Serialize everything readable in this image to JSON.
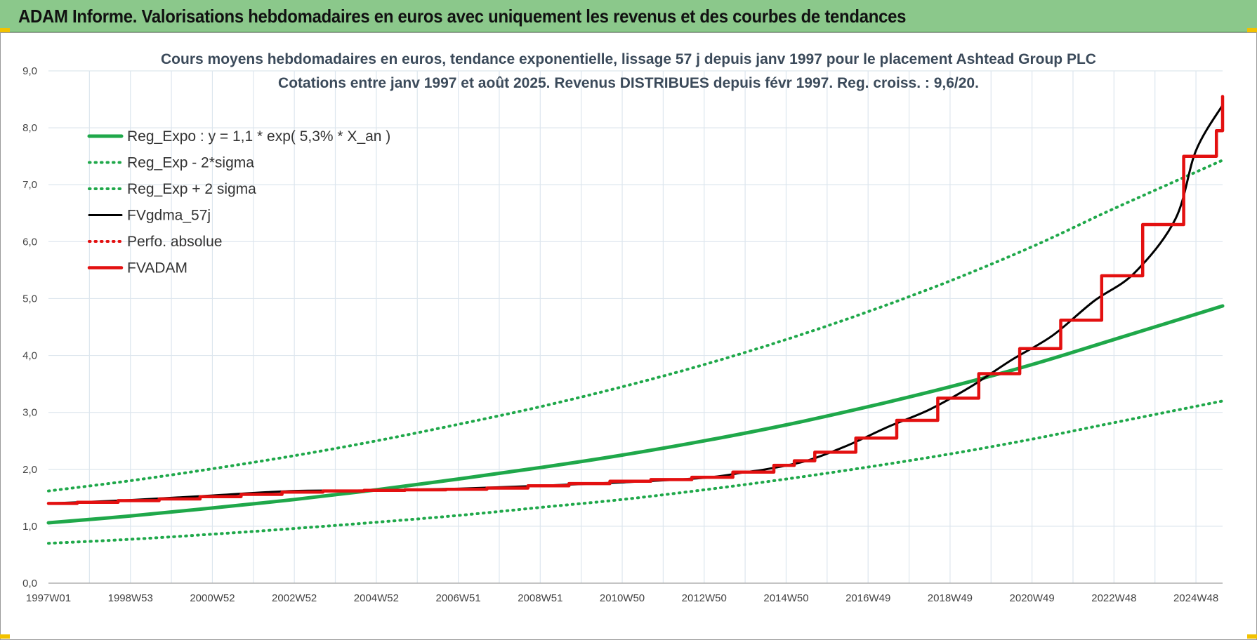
{
  "header": {
    "title": "ADAM Informe. Valorisations hebdomadaires en euros avec uniquement les revenus et des courbes de tendances"
  },
  "colors": {
    "header_bg": "#8bc88b",
    "green": "#1fa84a",
    "black": "#000000",
    "red": "#e31010",
    "grid": "#dde6ee"
  },
  "chart_data": {
    "type": "line",
    "title_lines": [
      "Cours moyens hebdomadaires en euros, tendance exponentielle, lissage 57 j depuis janv 1997 pour le placement Ashtead Group PLC",
      "Cotations entre janv 1997 et août 2025.  Revenus DISTRIBUES depuis févr 1997.  Reg. croiss. : 9,6/20."
    ],
    "xlim": [
      1997.0,
      2025.65
    ],
    "ylim": [
      0,
      9
    ],
    "grid": true,
    "legend_position": "top-left",
    "y_ticks": [
      "0,0",
      "1,0",
      "2,0",
      "3,0",
      "4,0",
      "5,0",
      "6,0",
      "7,0",
      "8,0",
      "9,0"
    ],
    "x_ticks": [
      {
        "label": "1997W01",
        "x": 1997.0
      },
      {
        "label": "1998W53",
        "x": 1999.0
      },
      {
        "label": "2000W52",
        "x": 2001.0
      },
      {
        "label": "2002W52",
        "x": 2003.0
      },
      {
        "label": "2004W52",
        "x": 2005.0
      },
      {
        "label": "2006W51",
        "x": 2007.0
      },
      {
        "label": "2008W51",
        "x": 2009.0
      },
      {
        "label": "2010W50",
        "x": 2011.0
      },
      {
        "label": "2012W50",
        "x": 2013.0
      },
      {
        "label": "2014W50",
        "x": 2015.0
      },
      {
        "label": "2016W49",
        "x": 2017.0
      },
      {
        "label": "2018W49",
        "x": 2019.0
      },
      {
        "label": "2020W49",
        "x": 2021.0
      },
      {
        "label": "2022W48",
        "x": 2023.0
      },
      {
        "label": "2024W48",
        "x": 2025.0
      }
    ],
    "series": [
      {
        "name": "Reg_Expo : y = 1,1 * exp( 5,3% *  X_an )",
        "style": "solid-thick",
        "color": "#1fa84a",
        "x": [
          1997,
          1999,
          2001,
          2003,
          2005,
          2007,
          2009,
          2011,
          2013,
          2015,
          2017,
          2019,
          2021,
          2023,
          2025.65
        ],
        "y": [
          1.06,
          1.18,
          1.32,
          1.47,
          1.64,
          1.83,
          2.03,
          2.25,
          2.5,
          2.78,
          3.1,
          3.45,
          3.84,
          4.28,
          4.87
        ]
      },
      {
        "name": "Reg_Exp - 2*sigma",
        "style": "dotted",
        "color": "#1fa84a",
        "x": [
          1997,
          1999,
          2001,
          2003,
          2005,
          2007,
          2009,
          2011,
          2013,
          2015,
          2017,
          2019,
          2021,
          2023,
          2025.65
        ],
        "y": [
          0.7,
          0.77,
          0.86,
          0.96,
          1.07,
          1.19,
          1.33,
          1.47,
          1.64,
          1.83,
          2.04,
          2.27,
          2.53,
          2.82,
          3.2
        ]
      },
      {
        "name": "Reg_Exp + 2 sigma",
        "style": "dotted",
        "color": "#1fa84a",
        "x": [
          1997,
          1999,
          2001,
          2003,
          2005,
          2007,
          2009,
          2011,
          2013,
          2015,
          2017,
          2019,
          2021,
          2023,
          2025.65
        ],
        "y": [
          1.62,
          1.8,
          2.01,
          2.24,
          2.5,
          2.79,
          3.1,
          3.45,
          3.84,
          4.28,
          4.77,
          5.31,
          5.91,
          6.58,
          7.43
        ]
      },
      {
        "name": "FVgdma_57j",
        "style": "solid",
        "color": "#000000",
        "x": [
          1997,
          1999,
          2001,
          2003,
          2005,
          2007,
          2009,
          2011,
          2013,
          2014,
          2014.5,
          2015.5,
          2016.5,
          2017.5,
          2018.5,
          2019.5,
          2020.5,
          2021.5,
          2022.5,
          2023.5,
          2024.5,
          2025.0,
          2025.65
        ],
        "y": [
          1.4,
          1.46,
          1.54,
          1.62,
          1.63,
          1.66,
          1.71,
          1.77,
          1.85,
          1.95,
          2.0,
          2.15,
          2.42,
          2.75,
          3.05,
          3.45,
          3.92,
          4.35,
          4.95,
          5.45,
          6.4,
          7.6,
          8.4
        ]
      },
      {
        "name": "Perfo. absolue",
        "style": "dotted",
        "color": "#e31010",
        "x": [],
        "y": []
      },
      {
        "name": "FVADAM",
        "style": "step-thick",
        "color": "#e31010",
        "x": [
          1997,
          1997.7,
          1998.7,
          1999.7,
          2000.7,
          2001.7,
          2002.7,
          2003.7,
          2004.7,
          2005.7,
          2006.7,
          2007.7,
          2008.7,
          2009.7,
          2010.7,
          2011.7,
          2012.7,
          2013.7,
          2014.7,
          2015.2,
          2015.7,
          2016.7,
          2017.7,
          2018.7,
          2019.7,
          2020.7,
          2021.7,
          2022.7,
          2023.7,
          2024.7,
          2025.5,
          2025.65
        ],
        "y": [
          1.4,
          1.42,
          1.45,
          1.48,
          1.52,
          1.56,
          1.6,
          1.62,
          1.63,
          1.64,
          1.65,
          1.67,
          1.71,
          1.75,
          1.79,
          1.82,
          1.86,
          1.95,
          2.07,
          2.15,
          2.3,
          2.55,
          2.86,
          3.25,
          3.68,
          4.12,
          4.62,
          5.4,
          6.3,
          7.5,
          7.95,
          8.55
        ]
      }
    ]
  }
}
